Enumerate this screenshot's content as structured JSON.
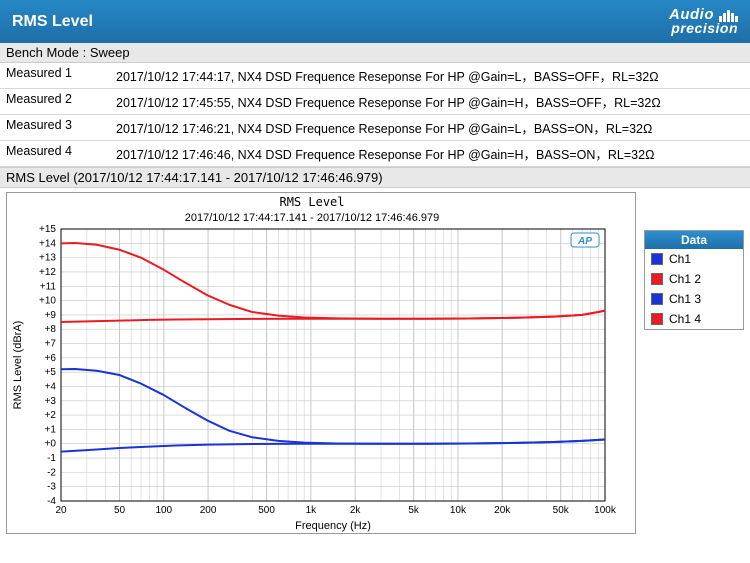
{
  "header": {
    "title": "RMS Level",
    "logo_text": "Audio\nprecision"
  },
  "benchmode": "Bench Mode : Sweep",
  "measurements": [
    {
      "label": "Measured 1",
      "desc": "2017/10/12 17:44:17, NX4 DSD Frequence Reseponse For HP @Gain=L，BASS=OFF，RL=32Ω"
    },
    {
      "label": "Measured 2",
      "desc": "2017/10/12 17:45:55, NX4 DSD Frequence Reseponse For HP @Gain=H，BASS=OFF，RL=32Ω"
    },
    {
      "label": "Measured 3",
      "desc": "2017/10/12 17:46:21, NX4 DSD Frequence Reseponse For HP @Gain=L，BASS=ON，RL=32Ω"
    },
    {
      "label": "Measured 4",
      "desc": "2017/10/12 17:46:46, NX4 DSD Frequence Reseponse For HP @Gain=H，BASS=ON，RL=32Ω"
    }
  ],
  "chart_section_title": "RMS Level (2017/10/12 17:44:17.141 - 2017/10/12 17:46:46.979)",
  "chart": {
    "title": "RMS Level",
    "subtitle": "2017/10/12 17:44:17.141 - 2017/10/12 17:46:46.979",
    "xaxis_label": "Frequency (Hz)",
    "yaxis_label": "RMS Level (dBrA)",
    "ap_badge": "AP",
    "ylim": [
      -4,
      15
    ],
    "xlim_log": [
      20,
      100000
    ],
    "yticks": [
      -4,
      -3,
      -2,
      -1,
      0,
      1,
      2,
      3,
      4,
      5,
      6,
      7,
      8,
      9,
      10,
      11,
      12,
      13,
      14,
      15
    ],
    "xticks": [
      {
        "v": 20,
        "l": "20"
      },
      {
        "v": 50,
        "l": "50"
      },
      {
        "v": 100,
        "l": "100"
      },
      {
        "v": 200,
        "l": "200"
      },
      {
        "v": 500,
        "l": "500"
      },
      {
        "v": 1000,
        "l": "1k"
      },
      {
        "v": 2000,
        "l": "2k"
      },
      {
        "v": 5000,
        "l": "5k"
      },
      {
        "v": 10000,
        "l": "10k"
      },
      {
        "v": 20000,
        "l": "20k"
      },
      {
        "v": 50000,
        "l": "50k"
      },
      {
        "v": 100000,
        "l": "100k"
      }
    ],
    "grid_color": "#c8c8c8",
    "axis_color": "#000000",
    "background_color": "#ffffff",
    "title_fontsize": 12,
    "label_fontsize": 11,
    "tick_fontsize": 10,
    "line_width": 2,
    "series": [
      {
        "name": "Ch1",
        "color": "#1a33d6",
        "points": [
          [
            20,
            -0.55
          ],
          [
            30,
            -0.45
          ],
          [
            50,
            -0.3
          ],
          [
            80,
            -0.2
          ],
          [
            120,
            -0.12
          ],
          [
            200,
            -0.06
          ],
          [
            400,
            -0.02
          ],
          [
            800,
            0.0
          ],
          [
            1500,
            0.0
          ],
          [
            3000,
            0.0
          ],
          [
            6000,
            0.0
          ],
          [
            12000,
            0.02
          ],
          [
            25000,
            0.06
          ],
          [
            45000,
            0.12
          ],
          [
            70000,
            0.2
          ],
          [
            100000,
            0.3
          ]
        ]
      },
      {
        "name": "Ch1 2",
        "color": "#ec1b22",
        "points": [
          [
            20,
            8.5
          ],
          [
            30,
            8.55
          ],
          [
            50,
            8.6
          ],
          [
            80,
            8.65
          ],
          [
            120,
            8.68
          ],
          [
            200,
            8.7
          ],
          [
            400,
            8.72
          ],
          [
            800,
            8.73
          ],
          [
            1500,
            8.73
          ],
          [
            3000,
            8.73
          ],
          [
            6000,
            8.73
          ],
          [
            12000,
            8.75
          ],
          [
            25000,
            8.8
          ],
          [
            45000,
            8.88
          ],
          [
            70000,
            9.0
          ],
          [
            90000,
            9.2
          ],
          [
            100000,
            9.3
          ]
        ]
      },
      {
        "name": "Ch1 3",
        "color": "#1a33d6",
        "points": [
          [
            20,
            5.2
          ],
          [
            25,
            5.22
          ],
          [
            35,
            5.1
          ],
          [
            50,
            4.8
          ],
          [
            70,
            4.2
          ],
          [
            100,
            3.4
          ],
          [
            140,
            2.5
          ],
          [
            200,
            1.6
          ],
          [
            280,
            0.9
          ],
          [
            400,
            0.45
          ],
          [
            600,
            0.2
          ],
          [
            900,
            0.08
          ],
          [
            1500,
            0.02
          ],
          [
            3000,
            0.0
          ],
          [
            6000,
            0.0
          ],
          [
            12000,
            0.02
          ],
          [
            25000,
            0.06
          ],
          [
            45000,
            0.12
          ],
          [
            70000,
            0.2
          ],
          [
            100000,
            0.3
          ]
        ]
      },
      {
        "name": "Ch1 4",
        "color": "#ec1b22",
        "points": [
          [
            20,
            14.0
          ],
          [
            25,
            14.02
          ],
          [
            35,
            13.9
          ],
          [
            50,
            13.55
          ],
          [
            70,
            13.0
          ],
          [
            100,
            12.15
          ],
          [
            140,
            11.25
          ],
          [
            200,
            10.35
          ],
          [
            280,
            9.7
          ],
          [
            400,
            9.2
          ],
          [
            600,
            8.95
          ],
          [
            900,
            8.82
          ],
          [
            1500,
            8.76
          ],
          [
            3000,
            8.73
          ],
          [
            6000,
            8.73
          ],
          [
            12000,
            8.75
          ],
          [
            25000,
            8.8
          ],
          [
            45000,
            8.88
          ],
          [
            70000,
            9.0
          ],
          [
            90000,
            9.2
          ],
          [
            100000,
            9.3
          ]
        ]
      }
    ],
    "legend": {
      "header": "Data"
    }
  }
}
